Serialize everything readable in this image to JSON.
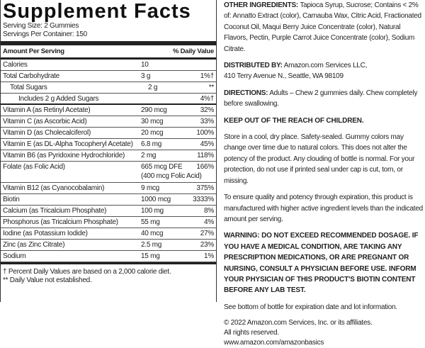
{
  "facts": {
    "title": "Supplement Facts",
    "serving_size": "Serving Size: 2 Gummies",
    "servings_per_container": "Servings Per Container: 150",
    "header": {
      "amount": "Amount Per Serving",
      "dv": "% Daily Value"
    },
    "rows": [
      {
        "name": "Calories",
        "amount": "10"
      },
      {
        "name": "Total Carbohydrate",
        "amount": "3 g",
        "dv": "1%†"
      },
      {
        "name": "Total Sugars",
        "amount": "2 g",
        "dv": "**"
      },
      {
        "name": "Includes 2 g Added Sugars",
        "dv": "4%†"
      },
      {
        "name": "Vitamin A (as Retinyl Acetate)",
        "amount": "290 mcg",
        "dv": "32%"
      },
      {
        "name": "Vitamin C (as Ascorbic Acid)",
        "amount": "30 mcg",
        "dv": "33%"
      },
      {
        "name": "Vitamin D (as Cholecalciferol)",
        "amount": "20 mcg",
        "dv": "100%"
      },
      {
        "name": "Vitamin E (as DL-Alpha Tocopheryl Acetate)",
        "amount": "6.8 mg",
        "dv": "45%"
      },
      {
        "name": "Vitamin B6 (as Pyridoxine Hydrochloride)",
        "amount": "2 mg",
        "dv": "118%"
      },
      {
        "name": "Folate (as Folic Acid)",
        "amount": "665 mcg DFE",
        "amount_note": "(400 mcg Folic Acid)",
        "dv": "166%"
      },
      {
        "name": "Vitamin B12 (as Cyanocobalamin)",
        "amount": "9 mcg",
        "dv": "375%"
      },
      {
        "name": "Biotin",
        "amount": "1000 mcg",
        "dv": "3333%"
      },
      {
        "name": "Calcium (as Tricalcium Phosphate)",
        "amount": "100 mg",
        "dv": "8%"
      },
      {
        "name": "Phosphorus (as Tricalcium Phosphate)",
        "amount": "55 mg",
        "dv": "4%"
      },
      {
        "name": "Iodine (as Potassium Iodide)",
        "amount": "40 mcg",
        "dv": "27%"
      },
      {
        "name": "Zinc (as Zinc Citrate)",
        "amount": "2.5 mg",
        "dv": "23%"
      },
      {
        "name": "Sodium",
        "amount": "15 mg",
        "dv": "1%"
      }
    ],
    "footnotes": [
      "† Percent Daily Values are based on a 2,000 calorie diet.",
      "** Daily Value not established."
    ]
  },
  "info": {
    "other_ingredients": {
      "label": "OTHER INGREDIENTS:",
      "text": "Tapioca Syrup, Sucrose; Contains < 2% of: Annatto Extract (color), Carnauba Wax, Citric Acid, Fractionated Coconut Oil, Maqui Berry Juice Concentrate (color), Natural Flavors, Pectin, Purple Carrot Juice Concentrate (color), Sodium Citrate."
    },
    "distributed_by": {
      "label": "DISTRIBUTED BY:",
      "text": "Amazon.com Services LLC,",
      "address": "410 Terry Avenue N., Seattle, WA 98109"
    },
    "directions": {
      "label": "DIRECTIONS:",
      "text": "Adults – Chew 2 gummies daily. Chew completely before swallowing."
    },
    "keep_out": "KEEP OUT OF THE REACH OF CHILDREN.",
    "storage": "Store in a cool, dry place. Safety-sealed. Gummy colors may change over time due to natural colors. This does not alter the potency of the product. Any clouding of bottle is normal. For your protection, do not use if printed seal under cap is cut, torn, or missing.",
    "quality": "To ensure quality and potency through expiration, this product is manufactured with higher active ingredient levels than the indicated amount per serving.",
    "warning": "WARNING:  DO NOT EXCEED RECOMMENDED DOSAGE. IF YOU HAVE A MEDICAL CONDITION, ARE TAKING ANY PRESCRIPTION MEDICATIONS, OR ARE PREGNANT OR NURSING, CONSULT A PHYSICIAN BEFORE USE. INFORM YOUR PHYSICIAN OF THIS PRODUCT'S BIOTIN CONTENT BEFORE ANY LAB TEST.",
    "expiration": "See bottom of bottle for expiration date and lot information.",
    "copyright": [
      "© 2022 Amazon.com Services, Inc. or its affiliates.",
      "All rights reserved.",
      "www.amazon.com/amazonbasics"
    ]
  }
}
